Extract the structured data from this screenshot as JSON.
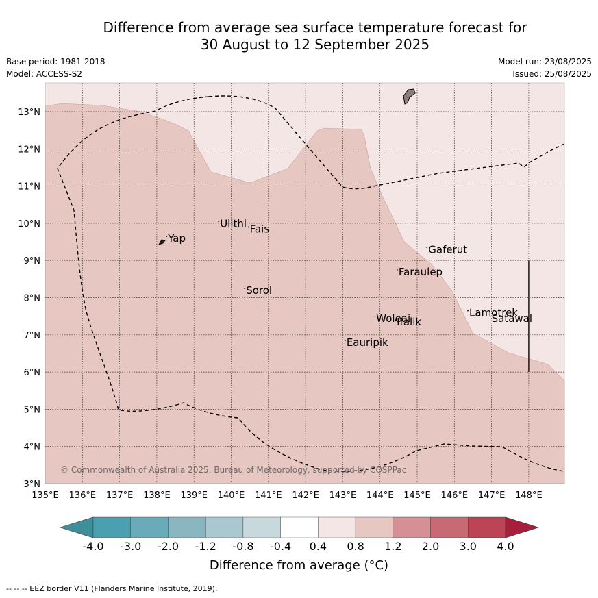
{
  "title": {
    "line1": "Difference from average sea surface temperature forecast for",
    "line2": "30 August to 12 September 2025"
  },
  "meta": {
    "base_period": "Base period: 1981-2018",
    "model": "Model: ACCESS-S2",
    "model_run": "Model run: 23/08/2025",
    "issued": "Issued: 25/08/2025"
  },
  "map": {
    "lon_labels": [
      "135°E",
      "136°E",
      "137°E",
      "138°E",
      "139°E",
      "140°E",
      "141°E",
      "142°E",
      "143°E",
      "144°E",
      "145°E",
      "146°E",
      "147°E",
      "148°E"
    ],
    "lat_labels": [
      "3°N",
      "4°N",
      "5°N",
      "6°N",
      "7°N",
      "8°N",
      "9°N",
      "10°N",
      "11°N",
      "12°N",
      "13°N"
    ],
    "copyright": "© Commonwealth of Australia 2025, Bureau of Meteorology, supported by COSPPac",
    "places": [
      {
        "name": "Yap",
        "lon": 138.3,
        "lat": 9.5
      },
      {
        "name": "Ulithi",
        "lon": 139.7,
        "lat": 9.9
      },
      {
        "name": "Fais",
        "lon": 140.5,
        "lat": 9.75
      },
      {
        "name": "Sorol",
        "lon": 140.4,
        "lat": 8.1
      },
      {
        "name": "Gaferut",
        "lon": 145.3,
        "lat": 9.2
      },
      {
        "name": "Faraulep",
        "lon": 144.5,
        "lat": 8.6
      },
      {
        "name": "Woleai",
        "lon": 143.9,
        "lat": 7.35
      },
      {
        "name": "Ifalik",
        "lon": 144.45,
        "lat": 7.25
      },
      {
        "name": "Lamotrek",
        "lon": 146.4,
        "lat": 7.5
      },
      {
        "name": "Satawal",
        "lon": 147.0,
        "lat": 7.35
      },
      {
        "name": "Eauripik",
        "lon": 143.1,
        "lat": 6.7
      }
    ],
    "anomaly_colors": {
      "outer": "#f4e6e4",
      "inner": "#e6c7c2"
    }
  },
  "colorbar": {
    "tick_labels": [
      "-4.0",
      "-3.0",
      "-2.0",
      "-1.2",
      "-0.8",
      "-0.4",
      "0.4",
      "0.8",
      "1.2",
      "2.0",
      "3.0",
      "4.0"
    ],
    "colors": [
      "#3f8f9a",
      "#4aa0b0",
      "#6aabba",
      "#8ab6c2",
      "#a9c8cf",
      "#c8d9dd",
      "#ffffff",
      "#f4e6e4",
      "#e6c7c2",
      "#d68f94",
      "#c86a73",
      "#bd4454",
      "#a91e3d"
    ],
    "title": "Difference from average (°C)"
  },
  "footer": "-- -- -- EEZ border V11 (Flanders Marine Institute, 2019)."
}
